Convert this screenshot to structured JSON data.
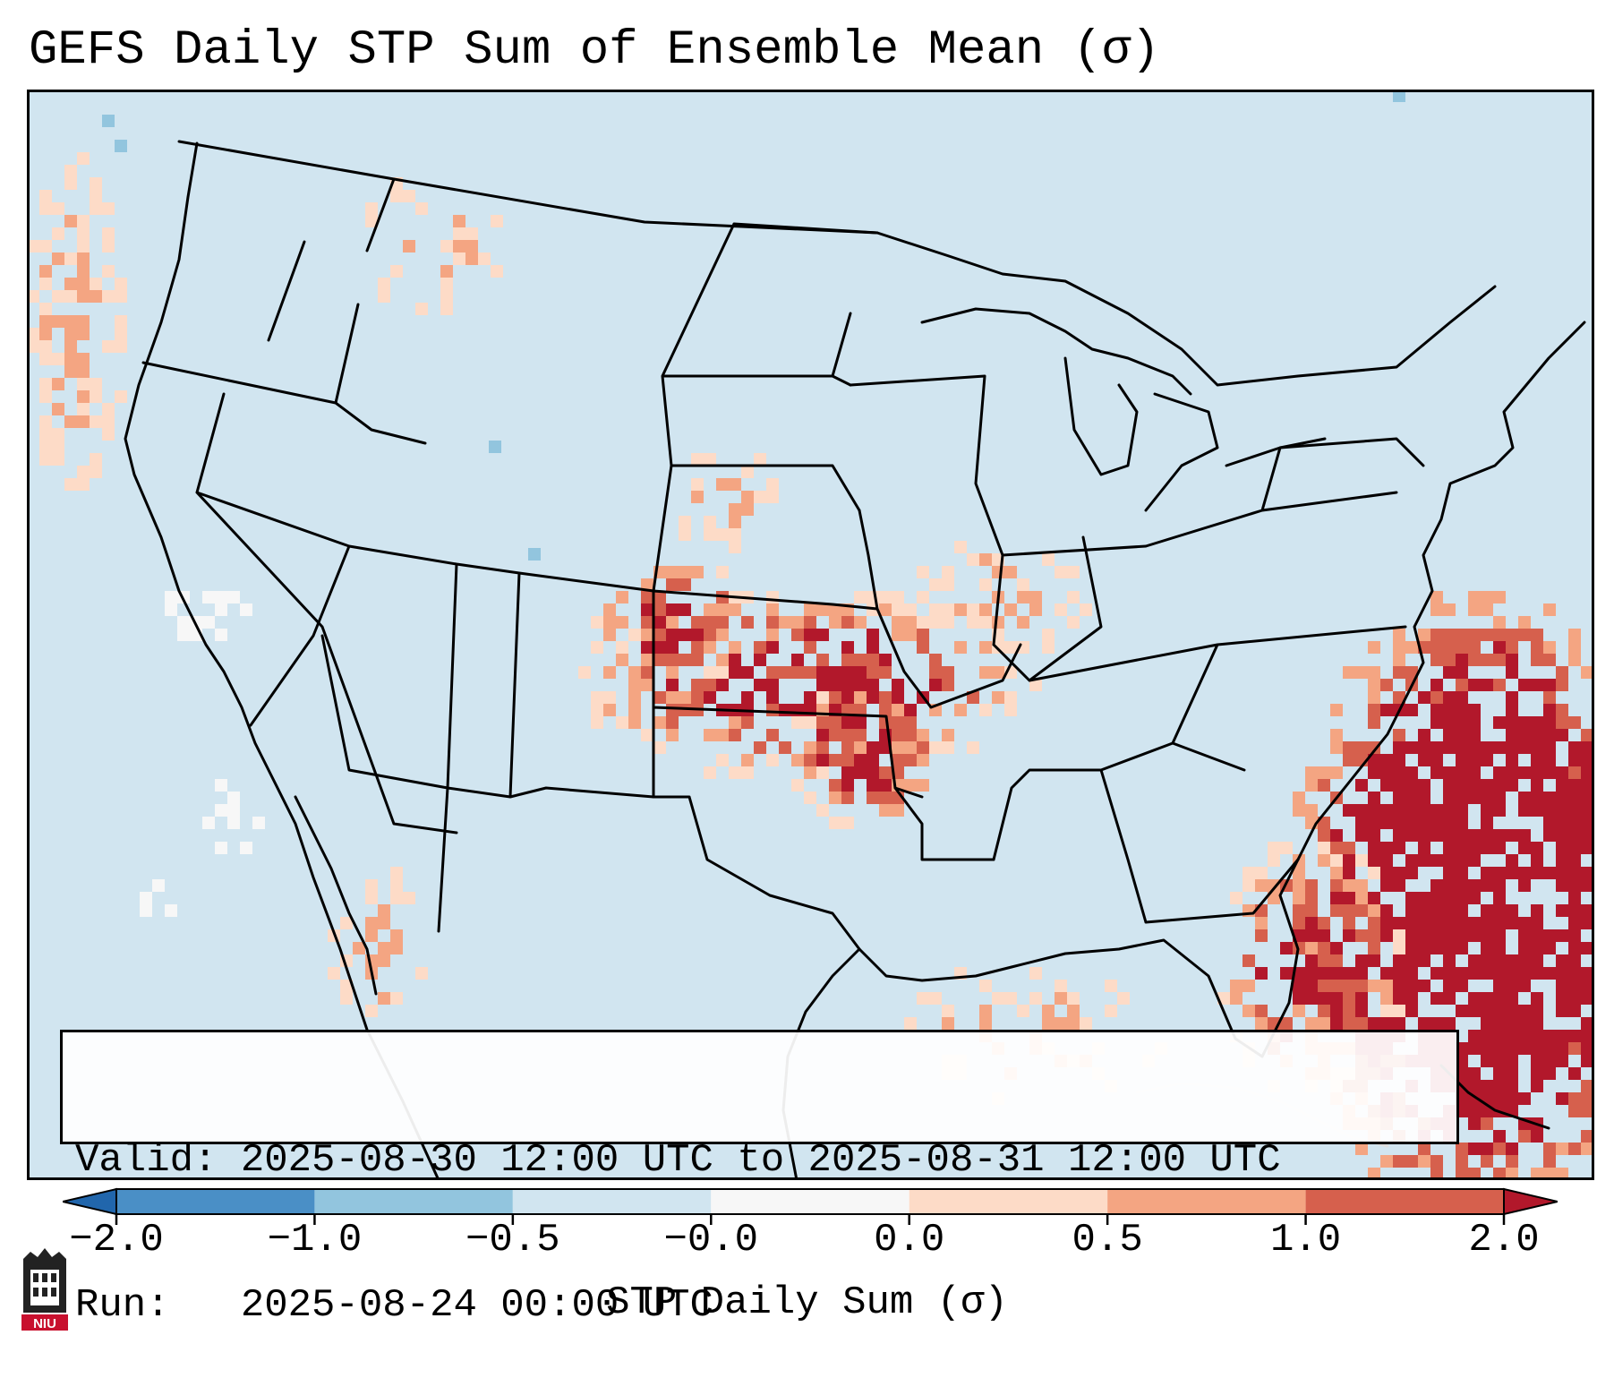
{
  "title": "GEFS Daily STP Sum of Ensemble Mean (σ)",
  "info": {
    "valid_line": "Valid: 2025-08-30 12:00 UTC to 2025-08-31 12:00 UTC",
    "run_line": "Run:   2025-08-24 00:00 UTC"
  },
  "colorbar": {
    "label": "STP Daily Sum (σ)",
    "ticks": [
      "−2.0",
      "−1.0",
      "−0.5",
      "−0.0",
      "0.0",
      "0.5",
      "1.0",
      "2.0"
    ],
    "colors": {
      "bin_neg2_neg1": "#4a8fc6",
      "bin_neg1_neg05": "#92c5de",
      "bin_neg05_0": "#d1e5f0",
      "bin_zero": "#f7f7f7",
      "bin_0_05": "#fddbc7",
      "bin_05_1": "#f4a582",
      "bin_1_2": "#d6604d",
      "bin_gt2": "#b2182b",
      "extend_low": "#2166ac",
      "extend_high": "#b2182b"
    }
  },
  "map": {
    "background_color": "#d1e5f0",
    "border_color": "#000000"
  },
  "logo": {
    "text": "NIU",
    "icon": "university-tower-icon"
  }
}
